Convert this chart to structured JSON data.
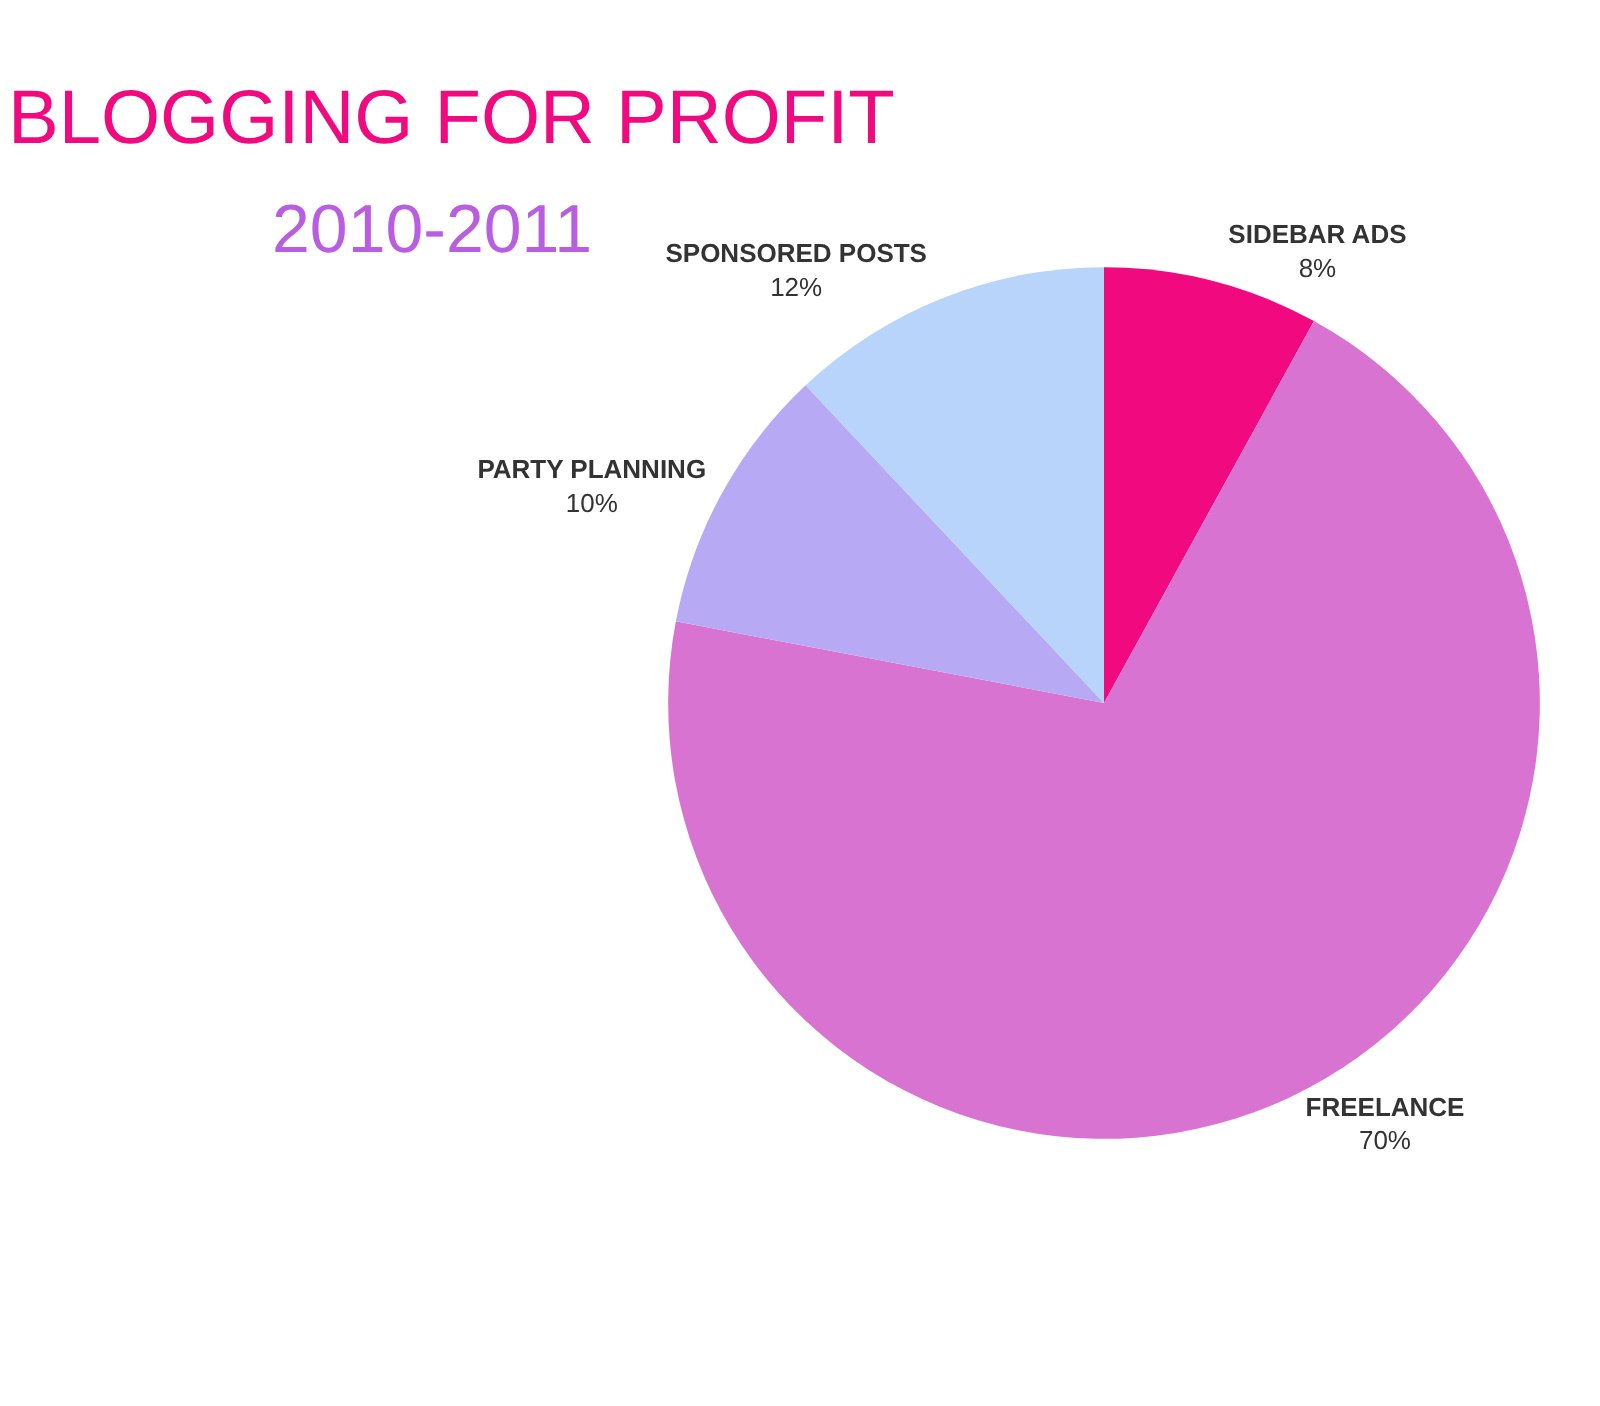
{
  "chart_data": {
    "type": "pie",
    "title": "BLOGGING FOR PROFIT",
    "subtitle": "2010-2011",
    "categories": [
      "SIDEBAR ADS",
      "FREELANCE",
      "PARTY PLANNING",
      "SPONSORED POSTS"
    ],
    "values": [
      8,
      70,
      10,
      12
    ],
    "value_labels": [
      "8%",
      "70%",
      "10%",
      "12%"
    ],
    "colors": [
      "#f0097f",
      "#d873d2",
      "#b8a9f5",
      "#b8d4fa"
    ],
    "legend": false
  }
}
